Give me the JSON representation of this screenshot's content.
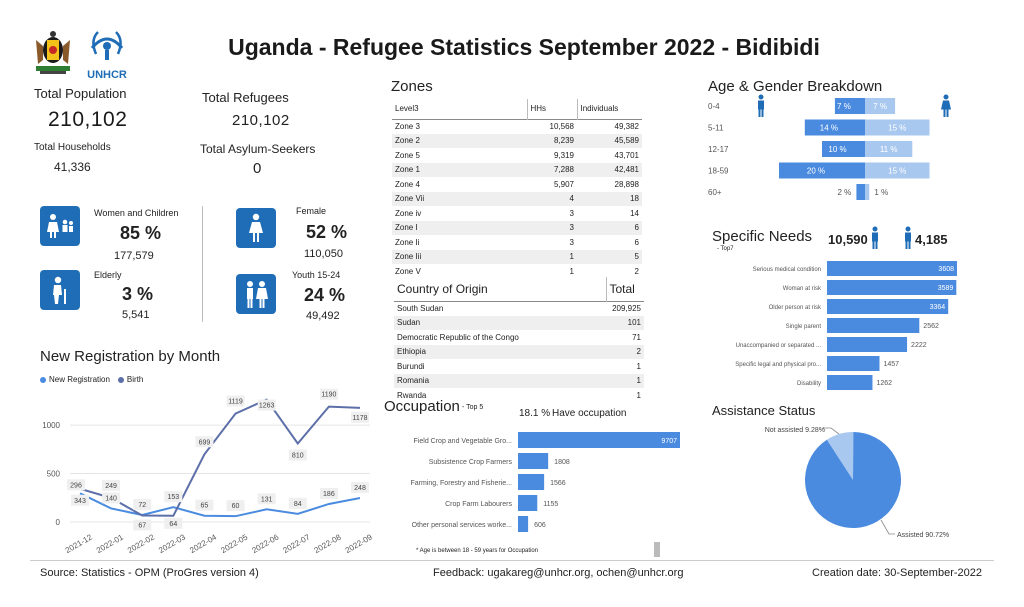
{
  "header": {
    "title": "Uganda - Refugee Statistics September 2022 - Bidibidi",
    "unhcr_text": "UNHCR"
  },
  "summary": {
    "total_population_label": "Total Population",
    "total_population": "210,102",
    "total_refugees_label": "Total Refugees",
    "total_refugees": "210,102",
    "total_households_label": "Total Households",
    "total_households": "41,336",
    "asylum_label": "Total Asylum-Seekers",
    "asylum": "0"
  },
  "demographics": {
    "women_children": {
      "label": "Women and Children",
      "pct": "85 %",
      "count": "177,579"
    },
    "female": {
      "label": "Female",
      "pct": "52 %",
      "count": "110,050"
    },
    "elderly": {
      "label": "Elderly",
      "pct": "3 %",
      "count": "5,541"
    },
    "youth": {
      "label": "Youth 15-24",
      "pct": "24 %",
      "count": "49,492"
    }
  },
  "zones": {
    "title": "Zones",
    "headers": [
      "Level3",
      "HHs",
      "Individuals"
    ],
    "rows": [
      [
        "Zone 3",
        "10,568",
        "49,382"
      ],
      [
        "Zone 2",
        "8,239",
        "45,589"
      ],
      [
        "Zone 5",
        "9,319",
        "43,701"
      ],
      [
        "Zone 1",
        "7,288",
        "42,481"
      ],
      [
        "Zone 4",
        "5,907",
        "28,898"
      ],
      [
        "Zone Vii",
        "4",
        "18"
      ],
      [
        "Zone iv",
        "3",
        "14"
      ],
      [
        "Zone I",
        "3",
        "6"
      ],
      [
        "Zone Ii",
        "3",
        "6"
      ],
      [
        "Zone Iii",
        "1",
        "5"
      ],
      [
        "Zone V",
        "1",
        "2"
      ]
    ]
  },
  "origin": {
    "headers": [
      "Country of Origin",
      "Total"
    ],
    "rows": [
      [
        "South Sudan",
        "209,925"
      ],
      [
        "Sudan",
        "101"
      ],
      [
        "Democratic Republic of the Congo",
        "71"
      ],
      [
        "Ethiopia",
        "2"
      ],
      [
        "Burundi",
        "1"
      ],
      [
        "Romania",
        "1"
      ],
      [
        "Rwanda",
        "1"
      ]
    ]
  },
  "footer": {
    "source": "Source: Statistics - OPM (ProGres version 4)",
    "feedback": "Feedback: ugakareg@unhcr.org, ochen@unhcr.org",
    "created": "Creation date: 30-September-2022"
  },
  "colors": {
    "primary": "#1f6db6",
    "bar": "#4a8bdf",
    "light": "#a9c8ef",
    "dark_line": "#5d6fa8"
  },
  "chart_data": [
    {
      "id": "registration",
      "type": "line",
      "title": "New Registration by Month",
      "legend": [
        "New Registration",
        "Birth"
      ],
      "categories": [
        "2021-12",
        "2022-01",
        "2022-02",
        "2022-03",
        "2022-04",
        "2022-05",
        "2022-06",
        "2022-07",
        "2022-08",
        "2022-09"
      ],
      "series": [
        {
          "name": "New Registration",
          "values": [
            296,
            140,
            72,
            153,
            65,
            60,
            131,
            84,
            186,
            248
          ]
        },
        {
          "name": "Birth",
          "values": [
            343,
            249,
            67,
            64,
            699,
            1119,
            1263,
            810,
            1190,
            1178
          ]
        }
      ],
      "ylim": [
        0,
        1300
      ],
      "yticks": [
        0,
        500,
        1000
      ]
    },
    {
      "id": "age_gender",
      "type": "bar",
      "title": "Age & Gender Breakdown",
      "categories": [
        "0-4",
        "5-11",
        "12-17",
        "18-59",
        "60+"
      ],
      "series": [
        {
          "name": "Male",
          "values": [
            7,
            14,
            10,
            20,
            2
          ]
        },
        {
          "name": "Female",
          "values": [
            7,
            15,
            11,
            15,
            1
          ]
        }
      ],
      "value_suffix": " %"
    },
    {
      "id": "specific_needs",
      "type": "bar",
      "title": "Specific Needs",
      "subtitle": "- Top7",
      "male_count": "10,590",
      "female_count": "4,185",
      "categories": [
        "Serious medical condition",
        "Woman at risk",
        "Older person at risk",
        "Single parent",
        "Unaccompanied or separated ...",
        "Specific legal and physical pro...",
        "Disability"
      ],
      "values": [
        3608,
        3589,
        3364,
        2562,
        2222,
        1457,
        1262
      ]
    },
    {
      "id": "occupation",
      "type": "bar",
      "title": "Occupation",
      "subtitle": "- Top 5",
      "have_occupation": "18.1 %",
      "have_occupation_label": "Have occupation",
      "note": "* Age is between 18 - 59 years for Occupation",
      "categories": [
        "Field Crop and Vegetable Gro...",
        "Subsistence Crop Farmers",
        "Farming, Forestry and Fisherie...",
        "Crop Farm Labourers",
        "Other personal services worke..."
      ],
      "values": [
        9707,
        1808,
        1566,
        1155,
        606
      ]
    },
    {
      "id": "assistance",
      "type": "pie",
      "title": "Assistance Status",
      "categories": [
        "Not assisted",
        "Assisted"
      ],
      "values": [
        9.28,
        90.72
      ],
      "labels": [
        "Not assisted 9.28%",
        "Assisted 90.72%"
      ]
    }
  ]
}
